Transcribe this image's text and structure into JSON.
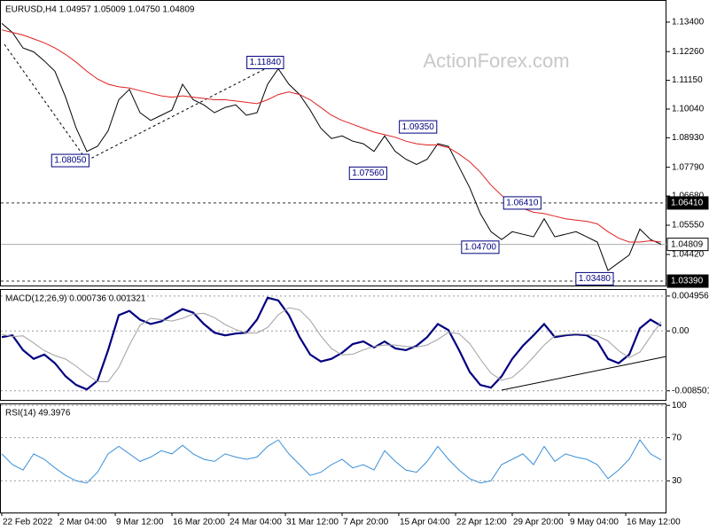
{
  "chart_data": [
    {
      "type": "line",
      "title": "EURUSD,H4  1.04957 1.05009 1.04750 1.04809",
      "watermark": "ActionForex.com",
      "x": [
        0,
        1,
        2,
        3,
        4,
        5,
        6,
        7,
        8,
        9,
        10,
        11,
        12,
        13,
        14,
        15,
        16,
        17,
        18,
        19,
        20,
        21,
        22,
        23,
        24,
        25,
        26,
        27,
        28,
        29,
        30,
        31,
        32,
        33,
        34,
        35,
        36,
        37,
        38,
        39,
        40,
        41,
        42,
        43,
        44,
        45,
        46,
        47,
        48,
        49,
        50,
        51,
        52,
        53,
        54,
        55,
        56,
        57,
        58,
        59,
        60,
        61,
        62
      ],
      "xlim": [
        -0.1667,
        62.5
      ],
      "ylim": [
        1.0322,
        1.1422
      ],
      "yticks": [
        {
          "value": 1.134,
          "label": "1.13400"
        },
        {
          "value": 1.1226,
          "label": "1.12260"
        },
        {
          "value": 1.1115,
          "label": "1.11150"
        },
        {
          "value": 1.1004,
          "label": "1.10040"
        },
        {
          "value": 1.0893,
          "label": "1.08930"
        },
        {
          "value": 1.0779,
          "label": "1.07790"
        },
        {
          "value": 1.0668,
          "label": "1.06680"
        },
        {
          "value": 1.0555,
          "label": "1.05550"
        },
        {
          "value": 1.0442,
          "label": "1.04420"
        }
      ],
      "grid": false,
      "series": [
        {
          "name": "Close",
          "color": "#000000",
          "width": 1,
          "values": [
            1.1335,
            1.13,
            1.124,
            1.1225,
            1.119,
            1.115,
            1.105,
            1.093,
            1.084,
            1.086,
            1.092,
            1.104,
            1.108,
            1.099,
            1.096,
            1.098,
            1.1,
            1.11,
            1.104,
            1.102,
            1.099,
            1.101,
            1.102,
            1.098,
            1.099,
            1.11,
            1.116,
            1.11,
            1.106,
            1.1,
            1.093,
            1.089,
            1.09,
            1.088,
            1.087,
            1.084,
            1.09,
            1.084,
            1.081,
            1.079,
            1.081,
            1.087,
            1.086,
            1.078,
            1.07,
            1.06,
            1.053,
            1.05,
            1.053,
            1.052,
            1.051,
            1.058,
            1.051,
            1.052,
            1.053,
            1.051,
            1.049,
            1.038,
            1.041,
            1.044,
            1.054,
            1.05,
            1.0481
          ]
        },
        {
          "name": "MA",
          "color": "#e02020",
          "width": 1,
          "values": [
            1.131,
            1.13,
            1.129,
            1.1275,
            1.126,
            1.124,
            1.1215,
            1.1185,
            1.115,
            1.112,
            1.11,
            1.109,
            1.1085,
            1.1075,
            1.1065,
            1.1055,
            1.105,
            1.1055,
            1.105,
            1.1045,
            1.104,
            1.104,
            1.1035,
            1.103,
            1.1025,
            1.104,
            1.106,
            1.107,
            1.106,
            1.104,
            1.101,
            1.098,
            1.096,
            1.0945,
            1.093,
            1.0915,
            1.0905,
            1.0895,
            1.088,
            1.087,
            1.0865,
            1.0865,
            1.0855,
            1.083,
            1.08,
            1.076,
            1.071,
            1.067,
            1.064,
            1.062,
            1.0605,
            1.06,
            1.059,
            1.058,
            1.0575,
            1.057,
            1.056,
            1.053,
            1.0505,
            1.049,
            1.049,
            1.0495,
            1.049
          ]
        }
      ],
      "levels": [
        {
          "value": 1.0641,
          "label": "1.06410",
          "line": "dashed",
          "box": "dark"
        },
        {
          "value": 1.04809,
          "label": "1.04809",
          "line": "solid",
          "box": "light"
        },
        {
          "value": 1.0339,
          "label": "1.03390",
          "line": "dashed",
          "box": "dark"
        }
      ],
      "callouts": [
        {
          "x": 26.5,
          "value": 1.1184,
          "label": "1.11840"
        },
        {
          "x": 8.2,
          "value": 1.0805,
          "label": "1.08050"
        },
        {
          "x": 40.9,
          "value": 1.0935,
          "label": "1.09350"
        },
        {
          "x": 36.2,
          "value": 1.0756,
          "label": "1.07560"
        },
        {
          "x": 50.7,
          "value": 1.0641,
          "label": "1.06410"
        },
        {
          "x": 46.75,
          "value": 1.047,
          "label": "1.04700"
        },
        {
          "x": 57.5,
          "value": 1.0348,
          "label": "1.03480"
        }
      ]
    },
    {
      "type": "line",
      "title": "MACD(12,26,9) 0.000736 0.001321",
      "x": [
        0,
        1,
        2,
        3,
        4,
        5,
        6,
        7,
        8,
        9,
        10,
        11,
        12,
        13,
        14,
        15,
        16,
        17,
        18,
        19,
        20,
        21,
        22,
        23,
        24,
        25,
        26,
        27,
        28,
        29,
        30,
        31,
        32,
        33,
        34,
        35,
        36,
        37,
        38,
        39,
        40,
        41,
        42,
        43,
        44,
        45,
        46,
        47,
        48,
        49,
        50,
        51,
        52,
        53,
        54,
        55,
        56,
        57,
        58,
        59,
        60,
        61,
        62
      ],
      "xlim": [
        -0.1667,
        62.5
      ],
      "ylim": [
        -0.00979,
        0.005824
      ],
      "yticks": [
        0.004956,
        {
          "value": 0,
          "label": "0.00"
        },
        -0.008501
      ],
      "grid": "dashed",
      "series": [
        {
          "name": "MACD",
          "color": "#000080",
          "width": 2.2,
          "values": [
            -0.00087,
            -0.00062,
            -0.00273,
            -0.00396,
            -0.00335,
            -0.00458,
            -0.00644,
            -0.00768,
            -0.0083,
            -0.00706,
            -0.00273,
            0.00223,
            0.00285,
            0.00161,
            0.00099,
            0.00136,
            0.00223,
            0.0031,
            0.0026,
            0.00099,
            -0.00025,
            -0.00062,
            -0.00037,
            -0.00025,
            0.00161,
            0.00471,
            0.00434,
            0.00223,
            -0.00087,
            -0.00335,
            -0.00434,
            -0.00396,
            -0.0031,
            -0.00186,
            -0.00149,
            -0.00235,
            -0.00149,
            -0.00248,
            -0.00273,
            -0.00211,
            -0.00087,
            0.00099,
            0.00012,
            -0.00273,
            -0.00582,
            -0.00768,
            -0.00805,
            -0.00644,
            -0.00396,
            -0.00211,
            -0.00062,
            0.00099,
            -0.00087,
            -0.00062,
            -0.0005,
            -0.00062,
            -0.00149,
            -0.00396,
            -0.00458,
            -0.00335,
            0.00037,
            0.00161,
            0.00074
          ]
        },
        {
          "name": "Signal",
          "color": "#a0a0a0",
          "width": 1,
          "values": [
            -0.0005,
            -0.0008,
            -0.0007,
            -0.0017,
            -0.0028,
            -0.0035,
            -0.004,
            -0.005,
            -0.0062,
            -0.0072,
            -0.0072,
            -0.0052,
            -0.002,
            0.0008,
            0.0018,
            0.0016,
            0.0014,
            0.0018,
            0.0024,
            0.0025,
            0.0019,
            0.0009,
            0.0002,
            -0.0003,
            -0.0003,
            0.0005,
            0.0023,
            0.0033,
            0.003,
            0.0015,
            -0.0007,
            -0.0025,
            -0.0034,
            -0.0033,
            -0.0027,
            -0.0022,
            -0.002,
            -0.002,
            -0.0022,
            -0.0023,
            -0.002,
            -0.0012,
            -0.0002,
            -0.0004,
            -0.0018,
            -0.004,
            -0.006,
            -0.007,
            -0.0066,
            -0.0053,
            -0.0037,
            -0.002,
            -0.0007,
            -0.0005,
            -0.0004,
            -0.0005,
            -0.0007,
            -0.0014,
            -0.0028,
            -0.0038,
            -0.003,
            -0.0008,
            0.00132
          ]
        }
      ]
    },
    {
      "type": "line",
      "title": "RSI(14) 49.3976",
      "x": [
        0,
        1,
        2,
        3,
        4,
        5,
        6,
        7,
        8,
        9,
        10,
        11,
        12,
        13,
        14,
        15,
        16,
        17,
        18,
        19,
        20,
        21,
        22,
        23,
        24,
        25,
        26,
        27,
        28,
        29,
        30,
        31,
        32,
        33,
        34,
        35,
        36,
        37,
        38,
        39,
        40,
        41,
        42,
        43,
        44,
        45,
        46,
        47,
        48,
        49,
        50,
        51,
        52,
        53,
        54,
        55,
        56,
        57,
        58,
        59,
        60,
        61,
        62
      ],
      "xlim": [
        -0.1667,
        62.5
      ],
      "ylim": [
        0.6,
        101
      ],
      "yticks": [
        100,
        70,
        30
      ],
      "grid": "dashed",
      "xticks": [
        {
          "value": 0,
          "label": "22 Feb 2022"
        },
        {
          "value": 5.33,
          "label": "2 Mar 04:00"
        },
        {
          "value": 10.67,
          "label": "9 Mar 12:00"
        },
        {
          "value": 16,
          "label": "16 Mar 20:00"
        },
        {
          "value": 21.33,
          "label": "24 Mar 04:00"
        },
        {
          "value": 26.67,
          "label": "31 Mar 12:00"
        },
        {
          "value": 32,
          "label": "7 Apr 20:00"
        },
        {
          "value": 37.33,
          "label": "15 Apr 04:00"
        },
        {
          "value": 42.67,
          "label": "22 Apr 12:00"
        },
        {
          "value": 48,
          "label": "29 Apr 20:00"
        },
        {
          "value": 53.33,
          "label": "9 May 04:00"
        },
        {
          "value": 58.67,
          "label": "16 May 12:00"
        }
      ],
      "series": [
        {
          "name": "RSI",
          "color": "#3a8fd8",
          "width": 1,
          "values": [
            55,
            45,
            40,
            55,
            50,
            42,
            35,
            30,
            28,
            38,
            55,
            62,
            55,
            48,
            52,
            58,
            55,
            63,
            55,
            50,
            48,
            55,
            52,
            50,
            52,
            62,
            68,
            55,
            45,
            35,
            38,
            45,
            50,
            42,
            45,
            40,
            58,
            48,
            40,
            38,
            48,
            62,
            50,
            40,
            32,
            28,
            30,
            45,
            50,
            55,
            45,
            62,
            48,
            55,
            52,
            50,
            45,
            32,
            40,
            50,
            68,
            55,
            49.3976
          ]
        }
      ]
    }
  ]
}
